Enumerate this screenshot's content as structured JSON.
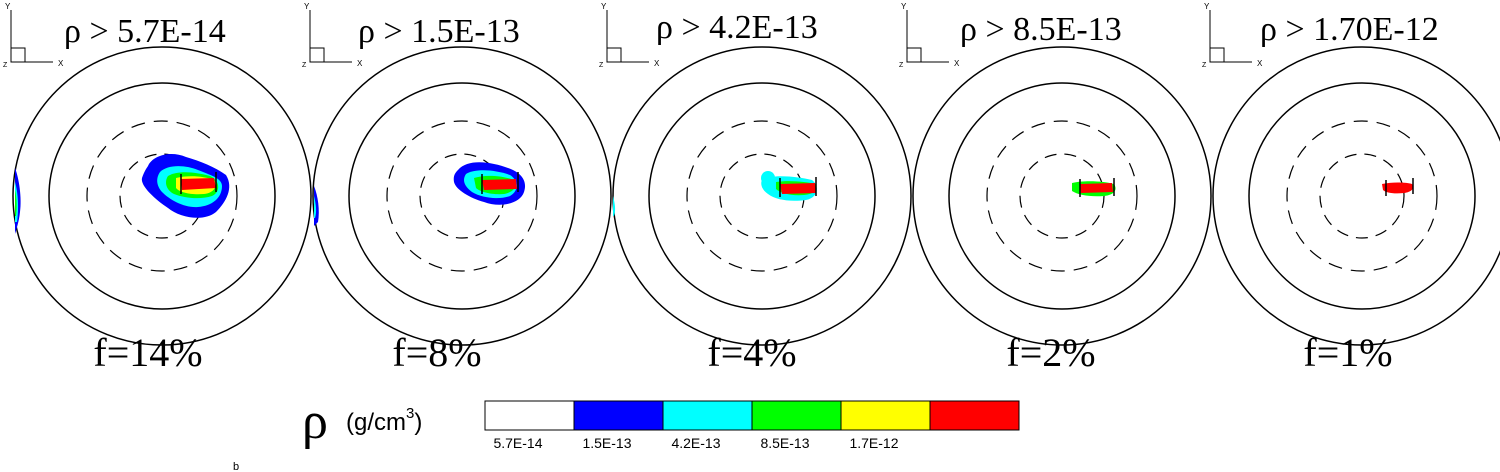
{
  "axis_triad": {
    "y": "Y",
    "x": "X",
    "z": "Z"
  },
  "panels": [
    {
      "title": "ρ > 5.7E-14",
      "caption": "f=14%"
    },
    {
      "title": "ρ > 1.5E-13",
      "caption": "f=8%"
    },
    {
      "title": "ρ > 4.2E-13",
      "caption": "f=4%"
    },
    {
      "title": "ρ > 8.5E-13",
      "caption": "f=2%"
    },
    {
      "title": "ρ > 1.70E-12",
      "caption": "f=1%"
    }
  ],
  "colorbar": {
    "symbol": "ρ",
    "unit_prefix": "(g/cm",
    "unit_exp": "3",
    "unit_suffix": ")",
    "colors": [
      "#ffffff",
      "#0000ff",
      "#00ffff",
      "#00ff00",
      "#ffff00",
      "#ff0000"
    ],
    "tick_labels": [
      "5.7E-14",
      "1.5E-13",
      "4.2E-13",
      "8.5E-13",
      "1.7E-12"
    ]
  },
  "stray_mark": "b"
}
